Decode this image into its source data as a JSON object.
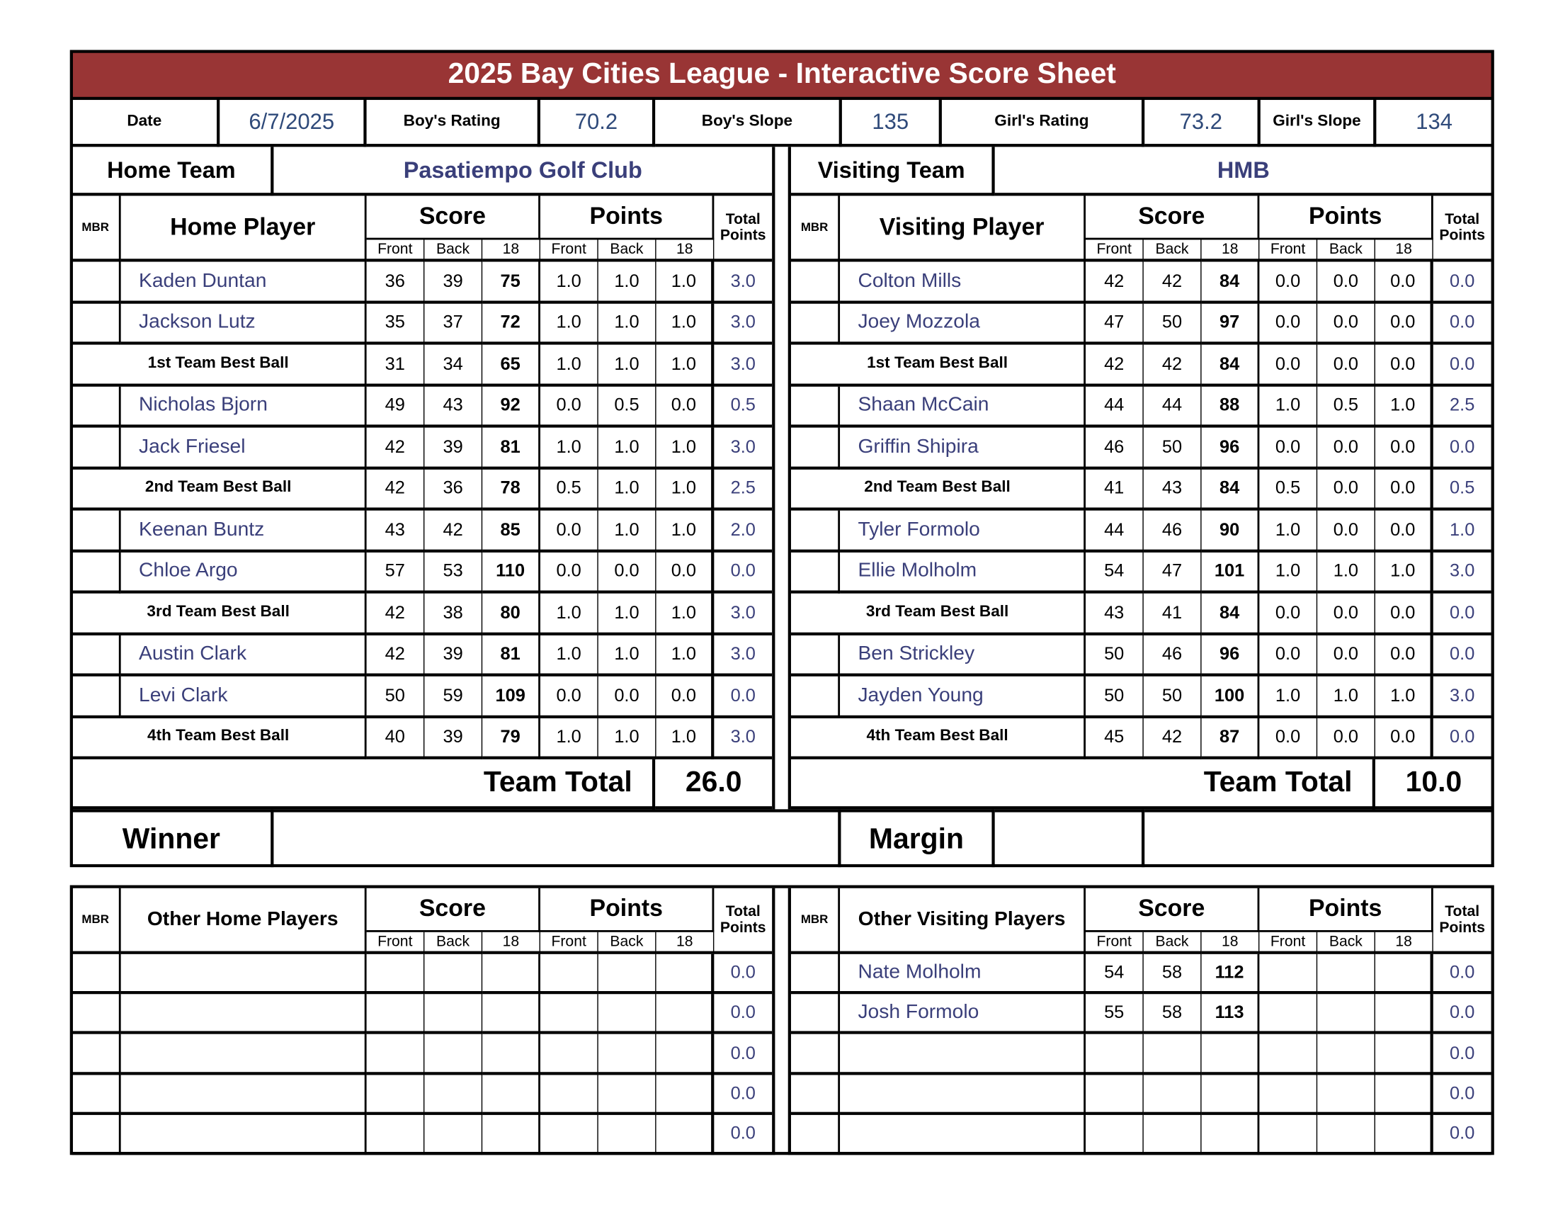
{
  "title": "2025 Bay Cities League - Interactive Score Sheet",
  "info": {
    "date_label": "Date",
    "date": "6/7/2025",
    "boys_rating_label": "Boy's Rating",
    "boys_rating": "70.2",
    "boys_slope_label": "Boy's Slope",
    "boys_slope": "135",
    "girls_rating_label": "Girl's Rating",
    "girls_rating": "73.2",
    "girls_slope_label": "Girl's Slope",
    "girls_slope": "134"
  },
  "colors": {
    "title_bar": "#993535",
    "player_text": "#3a3f7a"
  },
  "headers": {
    "mbr": "MBR",
    "score": "Score",
    "points": "Points",
    "total_points": "Total\nPoints",
    "front": "Front",
    "back": "Back",
    "eighteen": "18"
  },
  "home": {
    "team_label": "Home Team",
    "team_name": "Pasatiempo Golf Club",
    "player_header": "Home Player",
    "rows": [
      {
        "type": "player",
        "name": "Kaden Duntan",
        "front": "36",
        "back": "39",
        "total": "75",
        "pf": "1.0",
        "pb": "1.0",
        "p18": "1.0",
        "tp": "3.0"
      },
      {
        "type": "player",
        "name": "Jackson Lutz",
        "front": "35",
        "back": "37",
        "total": "72",
        "pf": "1.0",
        "pb": "1.0",
        "p18": "1.0",
        "tp": "3.0"
      },
      {
        "type": "bestball",
        "name": "1st Team Best Ball",
        "front": "31",
        "back": "34",
        "total": "65",
        "pf": "1.0",
        "pb": "1.0",
        "p18": "1.0",
        "tp": "3.0"
      },
      {
        "type": "player",
        "name": "Nicholas Bjorn",
        "front": "49",
        "back": "43",
        "total": "92",
        "pf": "0.0",
        "pb": "0.5",
        "p18": "0.0",
        "tp": "0.5"
      },
      {
        "type": "player",
        "name": "Jack Friesel",
        "front": "42",
        "back": "39",
        "total": "81",
        "pf": "1.0",
        "pb": "1.0",
        "p18": "1.0",
        "tp": "3.0"
      },
      {
        "type": "bestball",
        "name": "2nd Team Best Ball",
        "front": "42",
        "back": "36",
        "total": "78",
        "pf": "0.5",
        "pb": "1.0",
        "p18": "1.0",
        "tp": "2.5"
      },
      {
        "type": "player",
        "name": "Keenan Buntz",
        "front": "43",
        "back": "42",
        "total": "85",
        "pf": "0.0",
        "pb": "1.0",
        "p18": "1.0",
        "tp": "2.0"
      },
      {
        "type": "player",
        "name": "Chloe Argo",
        "front": "57",
        "back": "53",
        "total": "110",
        "pf": "0.0",
        "pb": "0.0",
        "p18": "0.0",
        "tp": "0.0"
      },
      {
        "type": "bestball",
        "name": "3rd Team Best Ball",
        "front": "42",
        "back": "38",
        "total": "80",
        "pf": "1.0",
        "pb": "1.0",
        "p18": "1.0",
        "tp": "3.0"
      },
      {
        "type": "player",
        "name": "Austin Clark",
        "front": "42",
        "back": "39",
        "total": "81",
        "pf": "1.0",
        "pb": "1.0",
        "p18": "1.0",
        "tp": "3.0"
      },
      {
        "type": "player",
        "name": "Levi Clark",
        "front": "50",
        "back": "59",
        "total": "109",
        "pf": "0.0",
        "pb": "0.0",
        "p18": "0.0",
        "tp": "0.0"
      },
      {
        "type": "bestball",
        "name": "4th Team Best Ball",
        "front": "40",
        "back": "39",
        "total": "79",
        "pf": "1.0",
        "pb": "1.0",
        "p18": "1.0",
        "tp": "3.0"
      }
    ],
    "team_total_label": "Team Total",
    "team_total": "26.0",
    "other_header": "Other Home Players",
    "other_rows": [
      {
        "name": "",
        "front": "",
        "back": "",
        "total": "",
        "pf": "",
        "pb": "",
        "p18": "",
        "tp": "0.0"
      },
      {
        "name": "",
        "front": "",
        "back": "",
        "total": "",
        "pf": "",
        "pb": "",
        "p18": "",
        "tp": "0.0"
      },
      {
        "name": "",
        "front": "",
        "back": "",
        "total": "",
        "pf": "",
        "pb": "",
        "p18": "",
        "tp": "0.0"
      },
      {
        "name": "",
        "front": "",
        "back": "",
        "total": "",
        "pf": "",
        "pb": "",
        "p18": "",
        "tp": "0.0"
      },
      {
        "name": "",
        "front": "",
        "back": "",
        "total": "",
        "pf": "",
        "pb": "",
        "p18": "",
        "tp": "0.0"
      }
    ]
  },
  "visiting": {
    "team_label": "Visiting Team",
    "team_name": "HMB",
    "player_header": "Visiting Player",
    "rows": [
      {
        "type": "player",
        "name": "Colton Mills",
        "front": "42",
        "back": "42",
        "total": "84",
        "pf": "0.0",
        "pb": "0.0",
        "p18": "0.0",
        "tp": "0.0"
      },
      {
        "type": "player",
        "name": "Joey Mozzola",
        "front": "47",
        "back": "50",
        "total": "97",
        "pf": "0.0",
        "pb": "0.0",
        "p18": "0.0",
        "tp": "0.0"
      },
      {
        "type": "bestball",
        "name": "1st Team Best Ball",
        "front": "42",
        "back": "42",
        "total": "84",
        "pf": "0.0",
        "pb": "0.0",
        "p18": "0.0",
        "tp": "0.0"
      },
      {
        "type": "player",
        "name": "Shaan McCain",
        "front": "44",
        "back": "44",
        "total": "88",
        "pf": "1.0",
        "pb": "0.5",
        "p18": "1.0",
        "tp": "2.5"
      },
      {
        "type": "player",
        "name": "Griffin Shipira",
        "front": "46",
        "back": "50",
        "total": "96",
        "pf": "0.0",
        "pb": "0.0",
        "p18": "0.0",
        "tp": "0.0"
      },
      {
        "type": "bestball",
        "name": "2nd Team Best Ball",
        "front": "41",
        "back": "43",
        "total": "84",
        "pf": "0.5",
        "pb": "0.0",
        "p18": "0.0",
        "tp": "0.5"
      },
      {
        "type": "player",
        "name": "Tyler Formolo",
        "front": "44",
        "back": "46",
        "total": "90",
        "pf": "1.0",
        "pb": "0.0",
        "p18": "0.0",
        "tp": "1.0"
      },
      {
        "type": "player",
        "name": "Ellie Molholm",
        "front": "54",
        "back": "47",
        "total": "101",
        "pf": "1.0",
        "pb": "1.0",
        "p18": "1.0",
        "tp": "3.0"
      },
      {
        "type": "bestball",
        "name": "3rd Team Best Ball",
        "front": "43",
        "back": "41",
        "total": "84",
        "pf": "0.0",
        "pb": "0.0",
        "p18": "0.0",
        "tp": "0.0"
      },
      {
        "type": "player",
        "name": "Ben Strickley",
        "front": "50",
        "back": "46",
        "total": "96",
        "pf": "0.0",
        "pb": "0.0",
        "p18": "0.0",
        "tp": "0.0"
      },
      {
        "type": "player",
        "name": "Jayden Young",
        "front": "50",
        "back": "50",
        "total": "100",
        "pf": "1.0",
        "pb": "1.0",
        "p18": "1.0",
        "tp": "3.0"
      },
      {
        "type": "bestball",
        "name": "4th Team Best Ball",
        "front": "45",
        "back": "42",
        "total": "87",
        "pf": "0.0",
        "pb": "0.0",
        "p18": "0.0",
        "tp": "0.0"
      }
    ],
    "team_total_label": "Team Total",
    "team_total": "10.0",
    "other_header": "Other Visiting Players",
    "other_rows": [
      {
        "name": "Nate Molholm",
        "front": "54",
        "back": "58",
        "total": "112",
        "pf": "",
        "pb": "",
        "p18": "",
        "tp": "0.0"
      },
      {
        "name": "Josh Formolo",
        "front": "55",
        "back": "58",
        "total": "113",
        "pf": "",
        "pb": "",
        "p18": "",
        "tp": "0.0"
      },
      {
        "name": "",
        "front": "",
        "back": "",
        "total": "",
        "pf": "",
        "pb": "",
        "p18": "",
        "tp": "0.0"
      },
      {
        "name": "",
        "front": "",
        "back": "",
        "total": "",
        "pf": "",
        "pb": "",
        "p18": "",
        "tp": "0.0"
      },
      {
        "name": "",
        "front": "",
        "back": "",
        "total": "",
        "pf": "",
        "pb": "",
        "p18": "",
        "tp": "0.0"
      }
    ]
  },
  "result": {
    "winner_label": "Winner",
    "winner": "",
    "margin_label": "Margin",
    "margin": "",
    "margin_note": ""
  }
}
